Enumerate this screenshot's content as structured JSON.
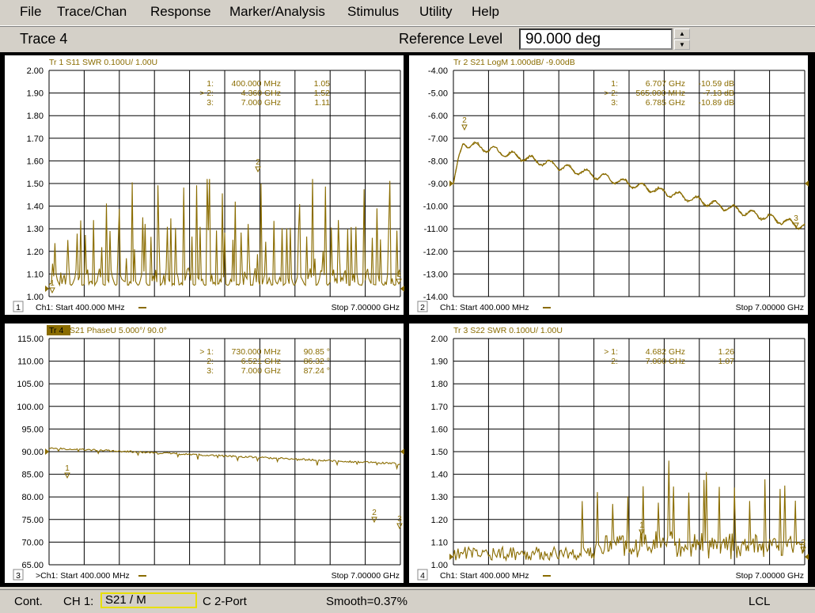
{
  "menu": [
    "File",
    "Trace/Chan",
    "Response",
    "Marker/Analysis",
    "Stimulus",
    "Utility",
    "Help"
  ],
  "toolbar": {
    "trace": "Trace 4",
    "ref_label": "Reference Level",
    "ref_value": "90.000 deg"
  },
  "colors": {
    "trace": "#8a6c00",
    "grid": "#000000",
    "active_tab": "#8a6c00"
  },
  "panels": [
    {
      "num": "1",
      "header": [
        {
          "text": "Tr  1  S11 SWR 0.100U/  1.00U",
          "active": false
        }
      ],
      "yticks": [
        "2.00",
        "1.90",
        "1.80",
        "1.70",
        "1.60",
        "1.50",
        "1.40",
        "1.30",
        "1.20",
        "1.10",
        "1.00"
      ],
      "markers": [
        {
          "n": "1:",
          "f": "400.000 MHz",
          "v": "1.05"
        },
        {
          "n": "> 2:",
          "f": "4.360 GHz",
          "v": "1.52"
        },
        {
          "n": "3:",
          "f": "7.000 GHz",
          "v": "1.11"
        }
      ],
      "start": "Ch1: Start  400.000 MHz",
      "stop": "Stop  7.00000 GHz"
    },
    {
      "num": "2",
      "header": [
        {
          "text": "Tr  2  S21 LogM 1.000dB/  -9.00dB",
          "active": false
        }
      ],
      "yticks": [
        "-4.00",
        "-5.00",
        "-6.00",
        "-7.00",
        "-8.00",
        "-9.00",
        "-10.00",
        "-11.00",
        "-12.00",
        "-13.00",
        "-14.00"
      ],
      "markers": [
        {
          "n": "1:",
          "f": "6.707 GHz",
          "v": "-10.59 dB"
        },
        {
          "n": "> 2:",
          "f": "565.000 MHz",
          "v": "-7.13 dB"
        },
        {
          "n": "3:",
          "f": "6.785 GHz",
          "v": "-10.89 dB"
        }
      ],
      "start": "Ch1: Start  400.000 MHz",
      "stop": "Stop  7.00000 GHz"
    },
    {
      "num": "3",
      "header": [
        {
          "text": "Tr  4",
          "active": true
        },
        {
          "text": "  S21 PhaseU 5.000°/  90.0°",
          "active": false
        }
      ],
      "yticks": [
        "115.00",
        "110.00",
        "105.00",
        "100.00",
        "95.00",
        "90.00",
        "85.00",
        "80.00",
        "75.00",
        "70.00",
        "65.00"
      ],
      "markers": [
        {
          "n": "> 1:",
          "f": "730.000 MHz",
          "v": "90.85 °"
        },
        {
          "n": "2:",
          "f": "6.521 GHz",
          "v": "86.32 °"
        },
        {
          "n": "3:",
          "f": "7.000 GHz",
          "v": "87.24 °"
        }
      ],
      "start": ">Ch1: Start  400.000 MHz",
      "stop": "Stop  7.00000 GHz"
    },
    {
      "num": "4",
      "header": [
        {
          "text": "Tr  3  S22 SWR 0.100U/  1.00U",
          "active": false
        }
      ],
      "yticks": [
        "2.00",
        "1.90",
        "1.80",
        "1.70",
        "1.60",
        "1.50",
        "1.40",
        "1.30",
        "1.20",
        "1.10",
        "1.00"
      ],
      "markers": [
        {
          "n": "> 1:",
          "f": "4.682 GHz",
          "v": "1.26"
        },
        {
          "n": "2:",
          "f": "7.000 GHz",
          "v": "1.07"
        }
      ],
      "start": "Ch1: Start  400.000 MHz",
      "stop": "Stop  7.00000 GHz"
    }
  ],
  "status": {
    "mode": "Cont.",
    "ch": "CH 1:",
    "param": "S21 / M",
    "cal": "C  2-Port",
    "smooth": "Smooth=0.37%",
    "lcl": "LCL"
  }
}
